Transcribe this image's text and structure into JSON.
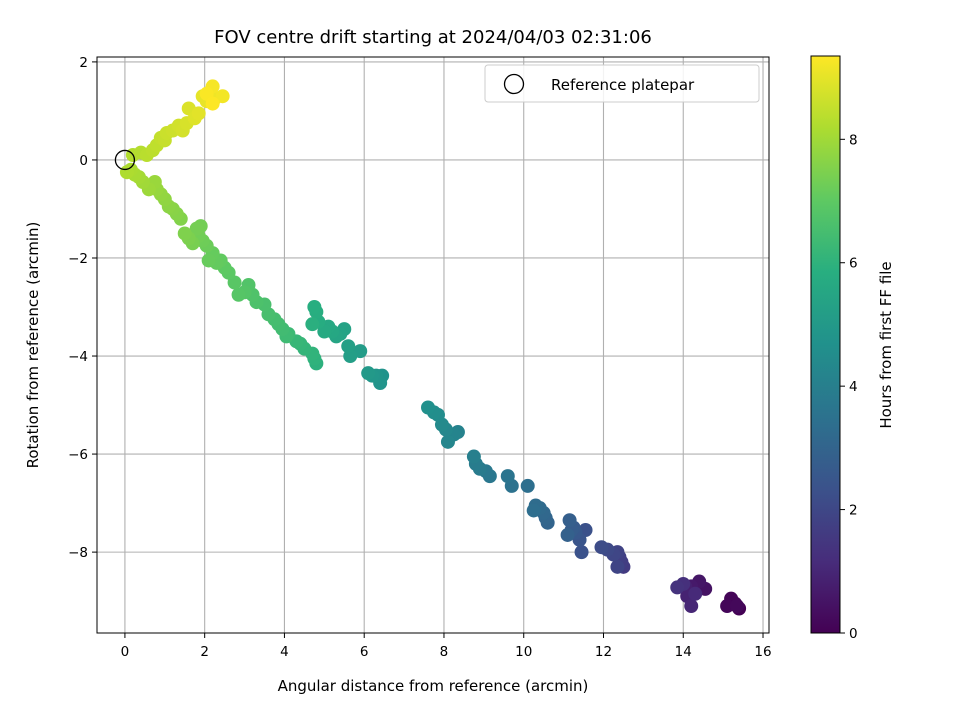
{
  "chart_data": {
    "type": "scatter",
    "title": "FOV centre drift starting at 2024/04/03 02:31:06",
    "xlabel": "Angular distance from reference (arcmin)",
    "ylabel": "Rotation from reference (arcmin)",
    "colorbar_label": "Hours from first FF file",
    "colormap": "viridis",
    "xlim": [
      -0.7,
      16.15
    ],
    "ylim": [
      -9.65,
      2.1
    ],
    "x_ticks": [
      0,
      2,
      4,
      6,
      8,
      10,
      12,
      14,
      16
    ],
    "y_ticks": [
      -8,
      -6,
      -4,
      -2,
      0,
      2
    ],
    "x_tick_labels": [
      "0",
      "2",
      "4",
      "6",
      "8",
      "10",
      "12",
      "14",
      "16"
    ],
    "y_tick_labels": [
      "−8",
      "−6",
      "−4",
      "−2",
      "0",
      "2"
    ],
    "colorbar_range": [
      0,
      9.35
    ],
    "colorbar_ticks": [
      0,
      2,
      4,
      6,
      8
    ],
    "colorbar_tick_labels": [
      "0",
      "2",
      "4",
      "6",
      "8"
    ],
    "grid": true,
    "legend": {
      "placement": "upper right",
      "entries": [
        "Reference platepar"
      ]
    },
    "reference_point": {
      "x": 0,
      "y": 0
    },
    "points": [
      [
        15.4,
        -9.15,
        0.0
      ],
      [
        15.3,
        -9.05,
        0.05
      ],
      [
        15.2,
        -8.95,
        0.1
      ],
      [
        15.1,
        -9.1,
        0.14
      ],
      [
        15.35,
        -9.1,
        0.18
      ],
      [
        14.55,
        -8.75,
        0.45
      ],
      [
        14.4,
        -8.6,
        0.55
      ],
      [
        14.2,
        -8.7,
        0.65
      ],
      [
        14.05,
        -8.7,
        0.8
      ],
      [
        14.1,
        -8.9,
        0.9
      ],
      [
        14.2,
        -9.1,
        1.0
      ],
      [
        14.3,
        -8.85,
        1.1
      ],
      [
        14.0,
        -8.65,
        1.25
      ],
      [
        13.85,
        -8.72,
        1.35
      ],
      [
        12.5,
        -8.3,
        1.6
      ],
      [
        12.45,
        -8.2,
        1.68
      ],
      [
        12.4,
        -8.1,
        1.75
      ],
      [
        12.35,
        -8.0,
        1.85
      ],
      [
        12.35,
        -8.3,
        1.9
      ],
      [
        12.25,
        -8.05,
        1.95
      ],
      [
        12.1,
        -7.95,
        2.05
      ],
      [
        11.95,
        -7.9,
        2.15
      ],
      [
        11.55,
        -7.55,
        2.3
      ],
      [
        11.45,
        -8.0,
        2.35
      ],
      [
        11.4,
        -7.75,
        2.45
      ],
      [
        11.3,
        -7.6,
        2.55
      ],
      [
        11.25,
        -7.5,
        2.65
      ],
      [
        11.2,
        -7.55,
        2.72
      ],
      [
        11.15,
        -7.35,
        2.8
      ],
      [
        11.1,
        -7.65,
        2.88
      ],
      [
        10.6,
        -7.4,
        3.0
      ],
      [
        10.55,
        -7.3,
        3.05
      ],
      [
        10.5,
        -7.2,
        3.15
      ],
      [
        10.4,
        -7.1,
        3.2
      ],
      [
        10.3,
        -7.05,
        3.3
      ],
      [
        10.25,
        -7.15,
        3.35
      ],
      [
        10.1,
        -6.65,
        3.4
      ],
      [
        9.7,
        -6.65,
        3.5
      ],
      [
        9.6,
        -6.45,
        3.6
      ],
      [
        9.15,
        -6.45,
        3.7
      ],
      [
        9.05,
        -6.35,
        3.75
      ],
      [
        8.9,
        -6.3,
        3.85
      ],
      [
        8.8,
        -6.2,
        3.9
      ],
      [
        8.75,
        -6.05,
        4.0
      ],
      [
        8.35,
        -5.55,
        4.1
      ],
      [
        8.25,
        -5.6,
        4.2
      ],
      [
        8.1,
        -5.75,
        4.25
      ],
      [
        8.05,
        -5.5,
        4.3
      ],
      [
        7.95,
        -5.4,
        4.4
      ],
      [
        7.85,
        -5.2,
        4.5
      ],
      [
        7.75,
        -5.15,
        4.55
      ],
      [
        7.6,
        -5.05,
        4.65
      ],
      [
        6.45,
        -4.4,
        4.75
      ],
      [
        6.4,
        -4.55,
        4.8
      ],
      [
        6.3,
        -4.4,
        4.85
      ],
      [
        6.2,
        -4.4,
        4.9
      ],
      [
        6.1,
        -4.35,
        5.0
      ],
      [
        5.9,
        -3.9,
        5.1
      ],
      [
        5.65,
        -4.0,
        5.2
      ],
      [
        5.6,
        -3.8,
        5.25
      ],
      [
        5.5,
        -3.45,
        5.35
      ],
      [
        5.4,
        -3.55,
        5.4
      ],
      [
        5.3,
        -3.6,
        5.45
      ],
      [
        5.2,
        -3.5,
        5.55
      ],
      [
        5.1,
        -3.4,
        5.6
      ],
      [
        5.0,
        -3.5,
        5.65
      ],
      [
        4.85,
        -3.3,
        5.75
      ],
      [
        4.8,
        -3.1,
        5.8
      ],
      [
        4.75,
        -3.0,
        5.85
      ],
      [
        4.7,
        -3.35,
        5.9
      ],
      [
        4.8,
        -4.15,
        5.95
      ],
      [
        4.75,
        -4.05,
        6.0
      ],
      [
        4.7,
        -3.95,
        6.05
      ],
      [
        4.5,
        -3.85,
        6.1
      ],
      [
        4.4,
        -3.75,
        6.15
      ],
      [
        4.3,
        -3.7,
        6.2
      ],
      [
        4.1,
        -3.55,
        6.3
      ],
      [
        4.05,
        -3.6,
        6.35
      ],
      [
        3.95,
        -3.45,
        6.4
      ],
      [
        3.85,
        -3.35,
        6.45
      ],
      [
        3.75,
        -3.25,
        6.5
      ],
      [
        3.6,
        -3.15,
        6.55
      ],
      [
        3.5,
        -2.95,
        6.6
      ],
      [
        3.3,
        -2.9,
        6.65
      ],
      [
        3.2,
        -2.75,
        6.7
      ],
      [
        3.1,
        -2.55,
        6.75
      ],
      [
        3.0,
        -2.7,
        6.8
      ],
      [
        2.85,
        -2.75,
        6.85
      ],
      [
        2.75,
        -2.5,
        6.9
      ],
      [
        2.6,
        -2.3,
        6.95
      ],
      [
        2.5,
        -2.2,
        7.0
      ],
      [
        2.4,
        -2.05,
        7.05
      ],
      [
        2.3,
        -2.1,
        7.1
      ],
      [
        2.2,
        -1.9,
        7.12
      ],
      [
        2.1,
        -2.05,
        7.15
      ],
      [
        2.05,
        -1.75,
        7.2
      ],
      [
        1.95,
        -1.65,
        7.25
      ],
      [
        1.85,
        -1.55,
        7.3
      ],
      [
        1.9,
        -1.35,
        7.32
      ],
      [
        1.8,
        -1.4,
        7.35
      ],
      [
        1.7,
        -1.7,
        7.4
      ],
      [
        1.6,
        -1.6,
        7.45
      ],
      [
        1.5,
        -1.5,
        7.5
      ],
      [
        1.4,
        -1.2,
        7.55
      ],
      [
        1.3,
        -1.1,
        7.6
      ],
      [
        1.2,
        -1.0,
        7.65
      ],
      [
        1.1,
        -0.95,
        7.7
      ],
      [
        1.0,
        -0.8,
        7.75
      ],
      [
        0.9,
        -0.7,
        7.8
      ],
      [
        0.8,
        -0.6,
        7.85
      ],
      [
        0.75,
        -0.45,
        7.9
      ],
      [
        0.6,
        -0.6,
        7.95
      ],
      [
        0.45,
        -0.45,
        8.0
      ],
      [
        0.35,
        -0.35,
        8.05
      ],
      [
        0.25,
        -0.3,
        8.1
      ],
      [
        0.15,
        -0.2,
        8.15
      ],
      [
        0.05,
        -0.25,
        8.2
      ],
      [
        0.2,
        0.1,
        8.25
      ],
      [
        0.4,
        0.15,
        8.3
      ],
      [
        0.55,
        0.1,
        8.35
      ],
      [
        0.7,
        0.2,
        8.4
      ],
      [
        0.8,
        0.3,
        8.45
      ],
      [
        0.9,
        0.45,
        8.5
      ],
      [
        1.0,
        0.4,
        8.55
      ],
      [
        1.05,
        0.55,
        8.6
      ],
      [
        1.2,
        0.6,
        8.65
      ],
      [
        1.35,
        0.7,
        8.7
      ],
      [
        1.45,
        0.6,
        8.75
      ],
      [
        1.55,
        0.75,
        8.8
      ],
      [
        1.6,
        1.05,
        8.85
      ],
      [
        1.75,
        0.85,
        8.9
      ],
      [
        1.85,
        0.95,
        8.95
      ],
      [
        1.95,
        1.3,
        9.0
      ],
      [
        2.05,
        1.2,
        9.05
      ],
      [
        2.15,
        1.4,
        9.1
      ],
      [
        2.25,
        1.25,
        9.15
      ],
      [
        2.45,
        1.3,
        9.2
      ],
      [
        2.2,
        1.5,
        9.25
      ],
      [
        2.05,
        1.35,
        9.3
      ],
      [
        2.2,
        1.15,
        9.33
      ]
    ]
  }
}
